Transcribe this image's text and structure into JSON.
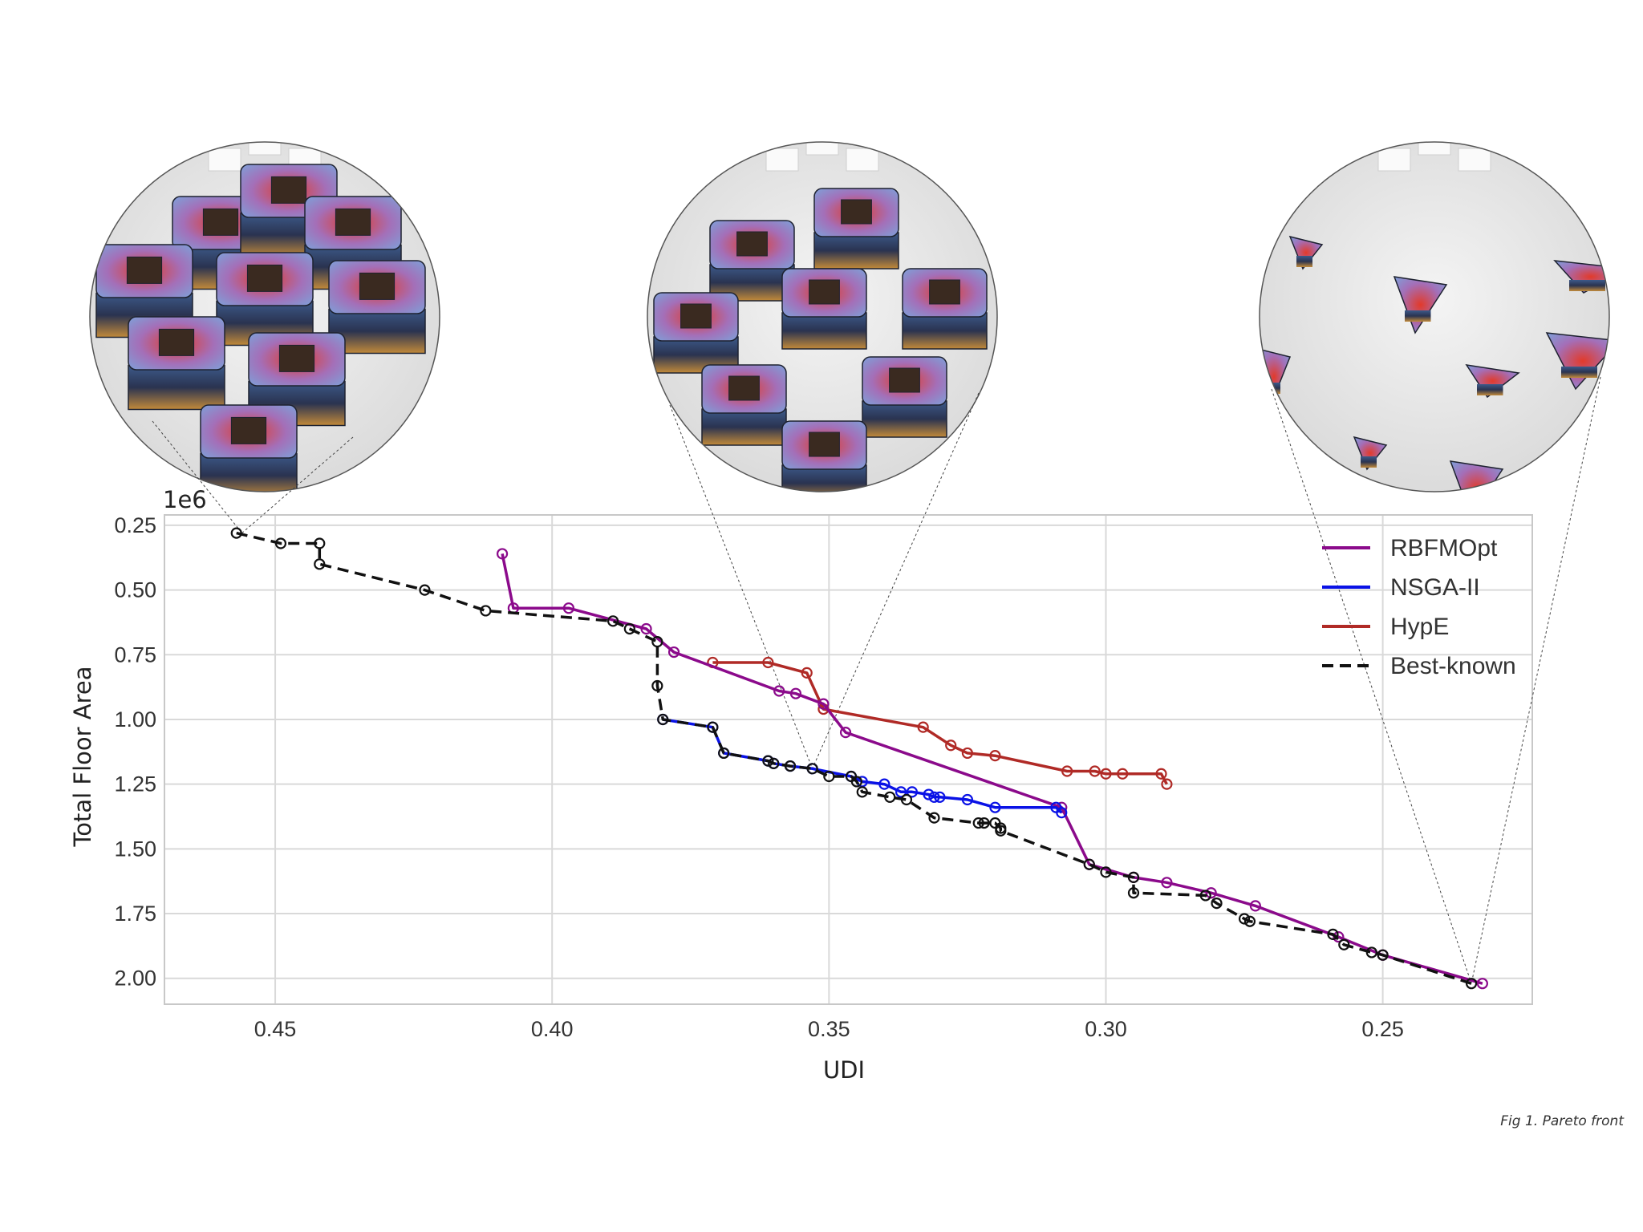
{
  "caption": "Fig 1. Pareto front",
  "chart_data": {
    "type": "line",
    "xlabel": "UDI",
    "ylabel": "Total Floor Area",
    "y_offset_text": "1e6",
    "xlim": [
      0.47,
      0.223
    ],
    "ylim": [
      2.1,
      0.21
    ],
    "x_inverted": true,
    "y_inverted": true,
    "grid": true,
    "legend_position": "top-right",
    "x_ticks": [
      "0.45",
      "0.40",
      "0.35",
      "0.30",
      "0.25"
    ],
    "x_tick_values": [
      0.45,
      0.4,
      0.35,
      0.3,
      0.25
    ],
    "y_ticks": [
      "0.25",
      "0.50",
      "0.75",
      "1.00",
      "1.25",
      "1.50",
      "1.75",
      "2.00"
    ],
    "y_tick_values": [
      0.25,
      0.5,
      0.75,
      1.0,
      1.25,
      1.5,
      1.75,
      2.0
    ],
    "series": [
      {
        "name": "RBFMOpt",
        "color": "#8b0a8b",
        "style": "solid",
        "points": [
          [
            0.409,
            0.36
          ],
          [
            0.407,
            0.57
          ],
          [
            0.397,
            0.57
          ],
          [
            0.383,
            0.65
          ],
          [
            0.378,
            0.74
          ],
          [
            0.359,
            0.89
          ],
          [
            0.356,
            0.9
          ],
          [
            0.351,
            0.94
          ],
          [
            0.347,
            1.05
          ],
          [
            0.308,
            1.34
          ],
          [
            0.303,
            1.56
          ],
          [
            0.295,
            1.61
          ],
          [
            0.289,
            1.63
          ],
          [
            0.281,
            1.67
          ],
          [
            0.273,
            1.72
          ],
          [
            0.258,
            1.84
          ],
          [
            0.25,
            1.91
          ],
          [
            0.232,
            2.02
          ]
        ]
      },
      {
        "name": "NSGA-II",
        "color": "#0a12e6",
        "style": "solid",
        "points": [
          [
            0.38,
            1.0
          ],
          [
            0.371,
            1.03
          ],
          [
            0.369,
            1.13
          ],
          [
            0.361,
            1.16
          ],
          [
            0.36,
            1.17
          ],
          [
            0.357,
            1.18
          ],
          [
            0.353,
            1.19
          ],
          [
            0.346,
            1.22
          ],
          [
            0.344,
            1.24
          ],
          [
            0.34,
            1.25
          ],
          [
            0.337,
            1.28
          ],
          [
            0.335,
            1.28
          ],
          [
            0.332,
            1.29
          ],
          [
            0.331,
            1.3
          ],
          [
            0.33,
            1.3
          ],
          [
            0.325,
            1.31
          ],
          [
            0.32,
            1.34
          ],
          [
            0.309,
            1.34
          ],
          [
            0.308,
            1.36
          ]
        ]
      },
      {
        "name": "HypE",
        "color": "#b02a26",
        "style": "solid",
        "points": [
          [
            0.371,
            0.78
          ],
          [
            0.361,
            0.78
          ],
          [
            0.354,
            0.82
          ],
          [
            0.351,
            0.96
          ],
          [
            0.333,
            1.03
          ],
          [
            0.328,
            1.1
          ],
          [
            0.325,
            1.13
          ],
          [
            0.32,
            1.14
          ],
          [
            0.307,
            1.2
          ],
          [
            0.302,
            1.2
          ],
          [
            0.3,
            1.21
          ],
          [
            0.297,
            1.21
          ],
          [
            0.29,
            1.21
          ],
          [
            0.289,
            1.25
          ]
        ]
      },
      {
        "name": "Best-known",
        "color": "#111111",
        "style": "dashed",
        "points": [
          [
            0.457,
            0.28
          ],
          [
            0.449,
            0.32
          ],
          [
            0.442,
            0.32
          ],
          [
            0.442,
            0.4
          ],
          [
            0.423,
            0.5
          ],
          [
            0.412,
            0.58
          ],
          [
            0.389,
            0.62
          ],
          [
            0.386,
            0.65
          ],
          [
            0.381,
            0.7
          ],
          [
            0.381,
            0.87
          ],
          [
            0.38,
            1.0
          ],
          [
            0.371,
            1.03
          ],
          [
            0.369,
            1.13
          ],
          [
            0.361,
            1.16
          ],
          [
            0.36,
            1.17
          ],
          [
            0.357,
            1.18
          ],
          [
            0.353,
            1.19
          ],
          [
            0.35,
            1.22
          ],
          [
            0.346,
            1.22
          ],
          [
            0.345,
            1.24
          ],
          [
            0.344,
            1.28
          ],
          [
            0.339,
            1.3
          ],
          [
            0.336,
            1.31
          ],
          [
            0.331,
            1.38
          ],
          [
            0.323,
            1.4
          ],
          [
            0.322,
            1.4
          ],
          [
            0.32,
            1.4
          ],
          [
            0.319,
            1.42
          ],
          [
            0.319,
            1.43
          ],
          [
            0.303,
            1.56
          ],
          [
            0.3,
            1.59
          ],
          [
            0.295,
            1.61
          ],
          [
            0.295,
            1.67
          ],
          [
            0.282,
            1.68
          ],
          [
            0.28,
            1.71
          ],
          [
            0.275,
            1.77
          ],
          [
            0.274,
            1.78
          ],
          [
            0.259,
            1.83
          ],
          [
            0.257,
            1.87
          ],
          [
            0.252,
            1.9
          ],
          [
            0.25,
            1.91
          ],
          [
            0.234,
            2.02
          ]
        ]
      }
    ]
  },
  "legend": {
    "items": [
      {
        "label": "RBFMOpt",
        "color": "#8b0a8b",
        "style": "solid"
      },
      {
        "label": "NSGA-II",
        "color": "#0a12e6",
        "style": "solid"
      },
      {
        "label": "HypE",
        "color": "#b02a26",
        "style": "solid"
      },
      {
        "label": "Best-known",
        "color": "#111111",
        "style": "dashed"
      }
    ]
  },
  "insets": [
    {
      "name": "inset-high-density",
      "points_to": [
        0.456,
        0.28
      ]
    },
    {
      "name": "inset-mid-density",
      "points_to": [
        0.353,
        1.19
      ]
    },
    {
      "name": "inset-low-density",
      "points_to": [
        0.234,
        2.02
      ]
    }
  ]
}
